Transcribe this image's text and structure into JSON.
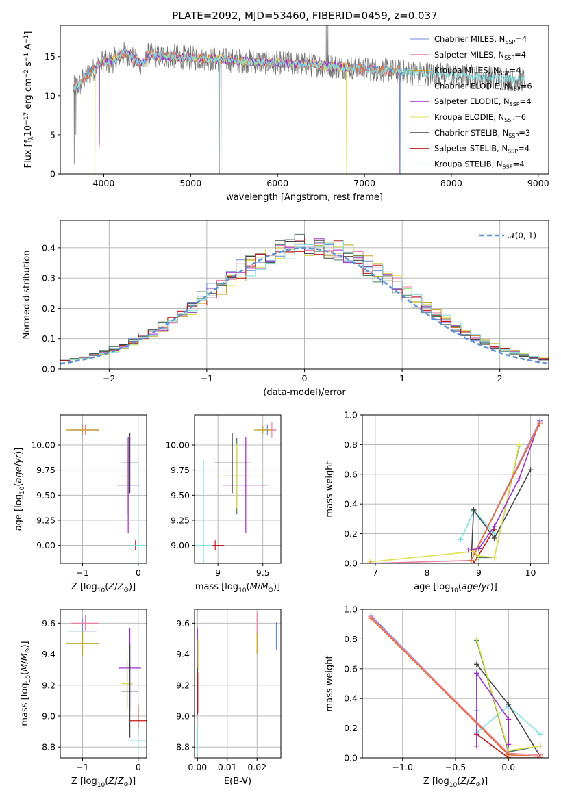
{
  "figure_title": "PLATE=2092, MJD=53460, FIBERID=0459, z=0.037",
  "colors": {
    "Chabrier MILES": "#6a8ad8",
    "Salpeter MILES": "#ee7fa6",
    "Kroupa MILES": "#c5a31f",
    "Chabrier ELODIE": "#4a7a5a",
    "Salpeter ELODIE": "#9b30c8",
    "Kroupa ELODIE": "#e0e050",
    "Chabrier STELIB": "#444444",
    "Salpeter STELIB": "#c01818",
    "Kroupa STELIB": "#80dede",
    "normal_curve": "#5b8fd6"
  },
  "chart_data": [
    {
      "id": "spectrum",
      "type": "line",
      "title": "PLATE=2092, MJD=53460, FIBERID=0459, z=0.037",
      "xlabel": "wavelength [Angstrom, rest frame]",
      "ylabel": "Flux [fλ10⁻¹⁷ erg cm⁻² s⁻¹ A⁻¹]",
      "xlim": [
        3500,
        9120
      ],
      "ylim": [
        0,
        19
      ],
      "xticks": [
        4000,
        5000,
        6000,
        7000,
        8000,
        9000
      ],
      "yticks": [
        0,
        5,
        10,
        15
      ],
      "grid": false,
      "legend_position": "top-right",
      "legend": [
        "Chabrier MILES, N_SSP=4",
        "Salpeter MILES, N_SSP=4",
        "Kroupa MILES, N_SSP=4",
        "Chabrier ELODIE, N_SSP=6",
        "Salpeter ELODIE, N_SSP=4",
        "Kroupa ELODIE, N_SSP=6",
        "Chabrier STELIB, N_SSP=3",
        "Salpeter STELIB, N_SSP=4",
        "Kroupa STELIB, N_SSP=4"
      ],
      "legend_html": [
        "Chabrier MILES, N<tspan font-size='8' dy='3'>SSP</tspan><tspan dy='-3'>=4</tspan>",
        "Salpeter MILES, N<tspan font-size='8' dy='3'>SSP</tspan><tspan dy='-3'>=4</tspan>",
        "Kroupa MILES, N<tspan font-size='8' dy='3'>SSP</tspan><tspan dy='-3'>=4</tspan>",
        "Chabrier ELODIE, N<tspan font-size='8' dy='3'>SSP</tspan><tspan dy='-3'>=6</tspan>",
        "Salpeter ELODIE, N<tspan font-size='8' dy='3'>SSP</tspan><tspan dy='-3'>=4</tspan>",
        "Kroupa ELODIE, N<tspan font-size='8' dy='3'>SSP</tspan><tspan dy='-3'>=6</tspan>",
        "Chabrier STELIB, N<tspan font-size='8' dy='3'>SSP</tspan><tspan dy='-3'>=3</tspan>",
        "Salpeter STELIB, N<tspan font-size='8' dy='3'>SSP</tspan><tspan dy='-3'>=4</tspan>",
        "Kroupa STELIB, N<tspan font-size='8' dy='3'>SSP</tspan><tspan dy='-3'>=4</tspan>"
      ],
      "data_range": {
        "observed": [
          3650,
          8850
        ],
        "MILES": [
          3650,
          7410
        ],
        "ELODIE": [
          3900,
          6800
        ],
        "STELIB": [
          3650,
          8850
        ]
      }
    },
    {
      "id": "residuals",
      "type": "line",
      "xlabel": "(data-model)/error",
      "ylabel": "Normed distribution",
      "xlim": [
        -2.5,
        2.5
      ],
      "ylim": [
        0,
        0.49
      ],
      "xticks": [
        -2,
        -1,
        0,
        1,
        2
      ],
      "yticks": [
        0.0,
        0.1,
        0.2,
        0.3,
        0.4
      ],
      "grid": true,
      "legend_position": "top-right",
      "legend": [
        "N(0, 1)"
      ],
      "bin_width": 0.1,
      "series": [
        "Chabrier MILES",
        "Salpeter MILES",
        "Kroupa MILES",
        "Chabrier ELODIE",
        "Salpeter ELODIE",
        "Kroupa ELODIE",
        "Chabrier STELIB",
        "Salpeter STELIB",
        "Kroupa STELIB"
      ]
    },
    {
      "id": "age_vs_Z",
      "type": "scatter",
      "xlabel": "Z [log₁₀(Z/Z⊙)]",
      "ylabel": "age  [log₁₀(age/yr)]",
      "xlim": [
        -1.4,
        0.15
      ],
      "ylim": [
        8.82,
        10.3
      ],
      "xticks": [
        -1,
        0
      ],
      "yticks": [
        9.0,
        9.25,
        9.5,
        9.75,
        10.0
      ],
      "grid": true,
      "points": [
        {
          "series": "Chabrier MILES",
          "x": -1.0,
          "xerr": 0.3,
          "y": 10.15,
          "yerr": 0.05
        },
        {
          "series": "Salpeter MILES",
          "x": -0.95,
          "xerr": 0.25,
          "y": 10.15,
          "yerr": 0.05
        },
        {
          "series": "Kroupa MILES",
          "x": -1.0,
          "xerr": 0.3,
          "y": 10.15,
          "yerr": 0.04
        },
        {
          "series": "Chabrier ELODIE",
          "x": -0.2,
          "xerr": 0.1,
          "y": 9.69,
          "yerr": 0.38
        },
        {
          "series": "Salpeter ELODIE",
          "x": -0.18,
          "xerr": 0.2,
          "y": 9.6,
          "yerr": 0.48
        },
        {
          "series": "Kroupa ELODIE",
          "x": -0.2,
          "xerr": 0.1,
          "y": 9.69,
          "yerr": 0.32
        },
        {
          "series": "Chabrier STELIB",
          "x": -0.15,
          "xerr": 0.15,
          "y": 9.82,
          "yerr": 0.3
        },
        {
          "series": "Salpeter STELIB",
          "x": -0.05,
          "xerr": 0.05,
          "y": 9.0,
          "yerr": 0.05
        },
        {
          "series": "Kroupa STELIB",
          "x": 0.0,
          "xerr": 0.15,
          "y": 9.0,
          "yerr": 0.85
        }
      ]
    },
    {
      "id": "age_vs_mass",
      "type": "scatter",
      "xlabel": "mass [log₁₀(M/M⊙)]",
      "ylabel": "",
      "xlim": [
        8.74,
        9.7
      ],
      "ylim": [
        8.82,
        10.3
      ],
      "xticks": [
        9.0,
        9.5
      ],
      "yticks": [
        9.0,
        9.25,
        9.5,
        9.75,
        10.0
      ],
      "grid": true,
      "points": [
        {
          "series": "Chabrier MILES",
          "x": 9.55,
          "xerr": 0.1,
          "y": 10.15,
          "yerr": 0.05
        },
        {
          "series": "Salpeter MILES",
          "x": 9.6,
          "xerr": 0.05,
          "y": 10.15,
          "yerr": 0.08
        },
        {
          "series": "Kroupa MILES",
          "x": 9.5,
          "xerr": 0.1,
          "y": 10.15,
          "yerr": 0.04
        },
        {
          "series": "Chabrier ELODIE",
          "x": 9.21,
          "xerr": 0.15,
          "y": 9.69,
          "yerr": 0.38
        },
        {
          "series": "Salpeter ELODIE",
          "x": 9.31,
          "xerr": 0.25,
          "y": 9.6,
          "yerr": 0.48
        },
        {
          "series": "Kroupa ELODIE",
          "x": 9.21,
          "xerr": 0.27,
          "y": 9.69,
          "yerr": 0.32
        },
        {
          "series": "Chabrier STELIB",
          "x": 9.16,
          "xerr": 0.2,
          "y": 9.82,
          "yerr": 0.3
        },
        {
          "series": "Salpeter STELIB",
          "x": 8.97,
          "xerr": 0.1,
          "y": 9.0,
          "yerr": 0.05
        },
        {
          "series": "Kroupa STELIB",
          "x": 8.84,
          "xerr": 0.1,
          "y": 9.0,
          "yerr": 0.85
        }
      ]
    },
    {
      "id": "weight_vs_age",
      "type": "line",
      "xlabel": "age  [log₁₀(age/yr)]",
      "ylabel": "mass weight",
      "xlim": [
        6.75,
        10.35
      ],
      "ylim": [
        0,
        1
      ],
      "xticks": [
        7,
        8,
        9,
        10
      ],
      "yticks": [
        0.0,
        0.2,
        0.4,
        0.6,
        0.8,
        1.0
      ],
      "grid": true,
      "series": [
        {
          "name": "Chabrier MILES",
          "x": [
            8.85,
            10.18
          ],
          "y": [
            0.02,
            0.96
          ]
        },
        {
          "name": "Salpeter MILES",
          "x": [
            6.9,
            8.85,
            10.18
          ],
          "y": [
            0.0,
            0.02,
            0.95
          ]
        },
        {
          "name": "Kroupa MILES",
          "x": [
            8.85,
            10.18
          ],
          "y": [
            0.02,
            0.94
          ]
        },
        {
          "name": "Chabrier ELODIE",
          "x": [
            8.9,
            9.0,
            9.3,
            9.78
          ],
          "y": [
            0.08,
            0.04,
            0.04,
            0.79
          ]
        },
        {
          "name": "Salpeter ELODIE",
          "x": [
            8.8,
            9.0,
            9.3,
            9.78,
            10.18
          ],
          "y": [
            0.09,
            0.1,
            0.25,
            0.57,
            0.96
          ]
        },
        {
          "name": "Kroupa ELODIE",
          "x": [
            6.9,
            8.9,
            9.0,
            9.3,
            9.78
          ],
          "y": [
            0.01,
            0.08,
            0.05,
            0.04,
            0.8
          ]
        },
        {
          "name": "Chabrier STELIB",
          "x": [
            8.85,
            8.9,
            9.3,
            10.0
          ],
          "y": [
            0.0,
            0.36,
            0.17,
            0.63
          ]
        },
        {
          "name": "Salpeter STELIB",
          "x": [
            8.9,
            9.3
          ],
          "y": [
            0.0,
            0.23
          ]
        },
        {
          "name": "Kroupa STELIB",
          "x": [
            8.65,
            8.9,
            9.0,
            9.3
          ],
          "y": [
            0.16,
            0.35,
            0.32,
            0.2
          ]
        }
      ]
    },
    {
      "id": "mass_vs_Z",
      "type": "scatter",
      "xlabel": "Z [log₁₀(Z/Z⊙)]",
      "ylabel": "mass [log₁₀(M/M⊙)]",
      "xlim": [
        -1.4,
        0.15
      ],
      "ylim": [
        8.73,
        9.69
      ],
      "xticks": [
        -1,
        0
      ],
      "yticks": [
        8.8,
        9.0,
        9.2,
        9.4,
        9.6
      ],
      "grid": true,
      "points": [
        {
          "series": "Chabrier MILES",
          "x": -1.0,
          "xerr": 0.25,
          "y": 9.55,
          "yerr": 0.08
        },
        {
          "series": "Salpeter MILES",
          "x": -0.95,
          "xerr": 0.25,
          "y": 9.6,
          "yerr": 0.05
        },
        {
          "series": "Kroupa MILES",
          "x": -1.0,
          "xerr": 0.3,
          "y": 9.47,
          "yerr": 0.08
        },
        {
          "series": "Chabrier ELODIE",
          "x": -0.2,
          "xerr": 0.1,
          "y": 9.21,
          "yerr": 0.15
        },
        {
          "series": "Salpeter ELODIE",
          "x": -0.15,
          "xerr": 0.2,
          "y": 9.31,
          "yerr": 0.26
        },
        {
          "series": "Kroupa ELODIE",
          "x": -0.2,
          "xerr": 0.1,
          "y": 9.21,
          "yerr": 0.2
        },
        {
          "series": "Chabrier STELIB",
          "x": -0.15,
          "xerr": 0.15,
          "y": 9.16,
          "yerr": 0.3
        },
        {
          "series": "Salpeter STELIB",
          "x": 0.0,
          "xerr": 0.15,
          "y": 8.97,
          "yerr": 0.1
        },
        {
          "series": "Kroupa STELIB",
          "x": 0.0,
          "xerr": 0.15,
          "y": 8.84,
          "yerr": 0.08
        }
      ]
    },
    {
      "id": "mass_vs_ebv",
      "type": "scatter",
      "xlabel": "E(B-V)",
      "ylabel": "",
      "xlim": [
        -0.001,
        0.028
      ],
      "ylim": [
        8.73,
        9.69
      ],
      "xticks": [
        0.0,
        0.01,
        0.02
      ],
      "xtick_labels": [
        "0.00",
        "0.01",
        "0.02"
      ],
      "yticks": [
        8.8,
        9.0,
        9.2,
        9.4,
        9.6
      ],
      "grid": true,
      "points": [
        {
          "series": "Chabrier MILES",
          "x": 0.0265,
          "y": 9.52,
          "yerr": 0.09
        },
        {
          "series": "Salpeter MILES",
          "x": 0.02,
          "y": 9.6,
          "yerr": 0.07
        },
        {
          "series": "Kroupa MILES",
          "x": 0.02,
          "y": 9.47,
          "yerr": 0.07
        },
        {
          "series": "Chabrier ELODIE",
          "x": 0.0,
          "y": 9.21,
          "yerr": 0.2
        },
        {
          "series": "Salpeter ELODIE",
          "x": 0.0,
          "y": 9.31,
          "yerr": 0.26
        },
        {
          "series": "Kroupa ELODIE",
          "x": 0.0002,
          "y": 9.4,
          "yerr": 0.1
        },
        {
          "series": "Chabrier STELIB",
          "x": 0.0,
          "y": 9.16,
          "yerr": 0.15
        },
        {
          "series": "Salpeter STELIB",
          "x": 0.0001,
          "y": 9.15,
          "yerr": 0.13
        },
        {
          "series": "Kroupa STELIB",
          "x": 0.0,
          "y": 8.84,
          "yerr": 0.1
        }
      ]
    },
    {
      "id": "weight_vs_Z",
      "type": "line",
      "xlabel": "Z [log₁₀(Z/Z⊙)]",
      "ylabel": "mass weight",
      "xlim": [
        -1.38,
        0.38
      ],
      "ylim": [
        0,
        1
      ],
      "xticks": [
        -1.0,
        -0.5,
        0.0
      ],
      "xtick_labels": [
        "−1.0",
        "−0.5",
        "0.0"
      ],
      "yticks": [
        0.0,
        0.2,
        0.4,
        0.6,
        0.8,
        1.0
      ],
      "grid": true,
      "series": [
        {
          "name": "Chabrier MILES",
          "x": [
            -1.3,
            0.0,
            0.3
          ],
          "y": [
            0.96,
            0.02,
            0.01
          ]
        },
        {
          "name": "Salpeter MILES",
          "x": [
            -1.3,
            0.0,
            0.3
          ],
          "y": [
            0.95,
            0.03,
            0.02
          ]
        },
        {
          "name": "Kroupa MILES",
          "x": [
            -1.3,
            0.0,
            0.3
          ],
          "y": [
            0.94,
            0.02,
            0.01
          ]
        },
        {
          "name": "Chabrier ELODIE",
          "x": [
            -0.3,
            0.0,
            0.3
          ],
          "y": [
            0.79,
            0.04,
            0.08
          ]
        },
        {
          "name": "Salpeter ELODIE",
          "x": [
            -0.3,
            -0.3,
            0.0,
            0.0
          ],
          "y": [
            0.08,
            0.57,
            0.26,
            0.09
          ]
        },
        {
          "name": "Kroupa ELODIE",
          "x": [
            -0.3,
            0.0,
            0.3
          ],
          "y": [
            0.8,
            0.05,
            0.08
          ]
        },
        {
          "name": "Chabrier STELIB",
          "x": [
            -0.3,
            0.0,
            0.3
          ],
          "y": [
            0.63,
            0.36,
            0.01
          ]
        },
        {
          "name": "Salpeter STELIB",
          "x": [
            -0.3,
            0.0,
            0.3
          ],
          "y": [
            0.16,
            0.0,
            0.0
          ]
        },
        {
          "name": "Kroupa STELIB",
          "x": [
            -0.3,
            -0.3,
            0.0,
            0.3
          ],
          "y": [
            0.32,
            0.17,
            0.35,
            0.16
          ]
        }
      ]
    }
  ]
}
